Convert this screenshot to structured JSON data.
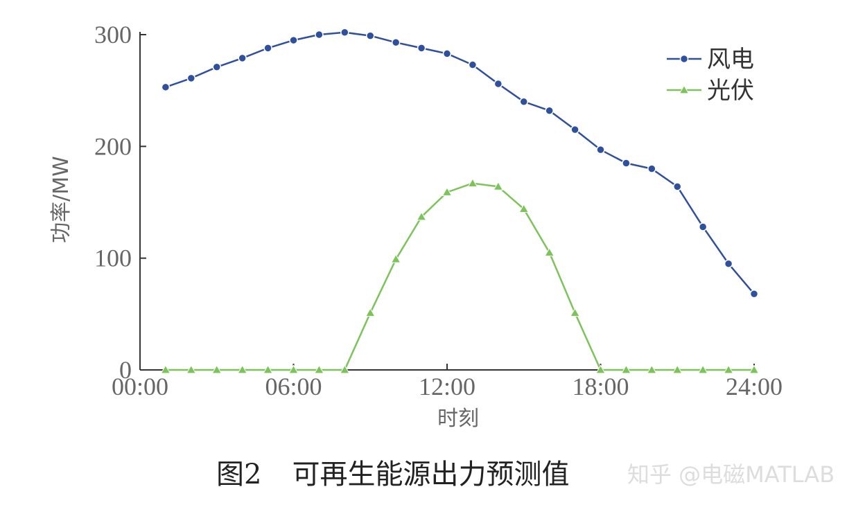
{
  "chart_data": {
    "type": "line",
    "xlabel": "时刻",
    "ylabel": "功率/MW",
    "x_tick_labels": [
      "00:00",
      "06:00",
      "12:00",
      "18:00",
      "24:00"
    ],
    "y_tick_labels": [
      "0",
      "100",
      "200",
      "300"
    ],
    "xlim": [
      0,
      24
    ],
    "ylim": [
      0,
      300
    ],
    "x": [
      1,
      2,
      3,
      4,
      5,
      6,
      7,
      8,
      9,
      10,
      11,
      12,
      13,
      14,
      15,
      16,
      17,
      18,
      19,
      20,
      21,
      22,
      23,
      24
    ],
    "legend_position": "top-right",
    "grid": false,
    "series": [
      {
        "name": "风电",
        "color": "#2f4f9f",
        "marker": "circle",
        "values": [
          253,
          261,
          271,
          279,
          288,
          295,
          300,
          302,
          299,
          293,
          288,
          283,
          273,
          256,
          240,
          232,
          215,
          197,
          185,
          180,
          164,
          128,
          95,
          68
        ]
      },
      {
        "name": "光伏",
        "color": "#7cc45a",
        "marker": "triangle",
        "values": [
          0,
          0,
          0,
          0,
          0,
          0,
          0,
          0,
          51,
          99,
          137,
          159,
          167,
          164,
          144,
          105,
          51,
          0,
          0,
          0,
          0,
          0,
          0,
          0
        ]
      }
    ]
  },
  "caption": {
    "number": "图2",
    "text": "可再生能源出力预测值"
  },
  "watermark": "知乎 @电磁MATLAB"
}
